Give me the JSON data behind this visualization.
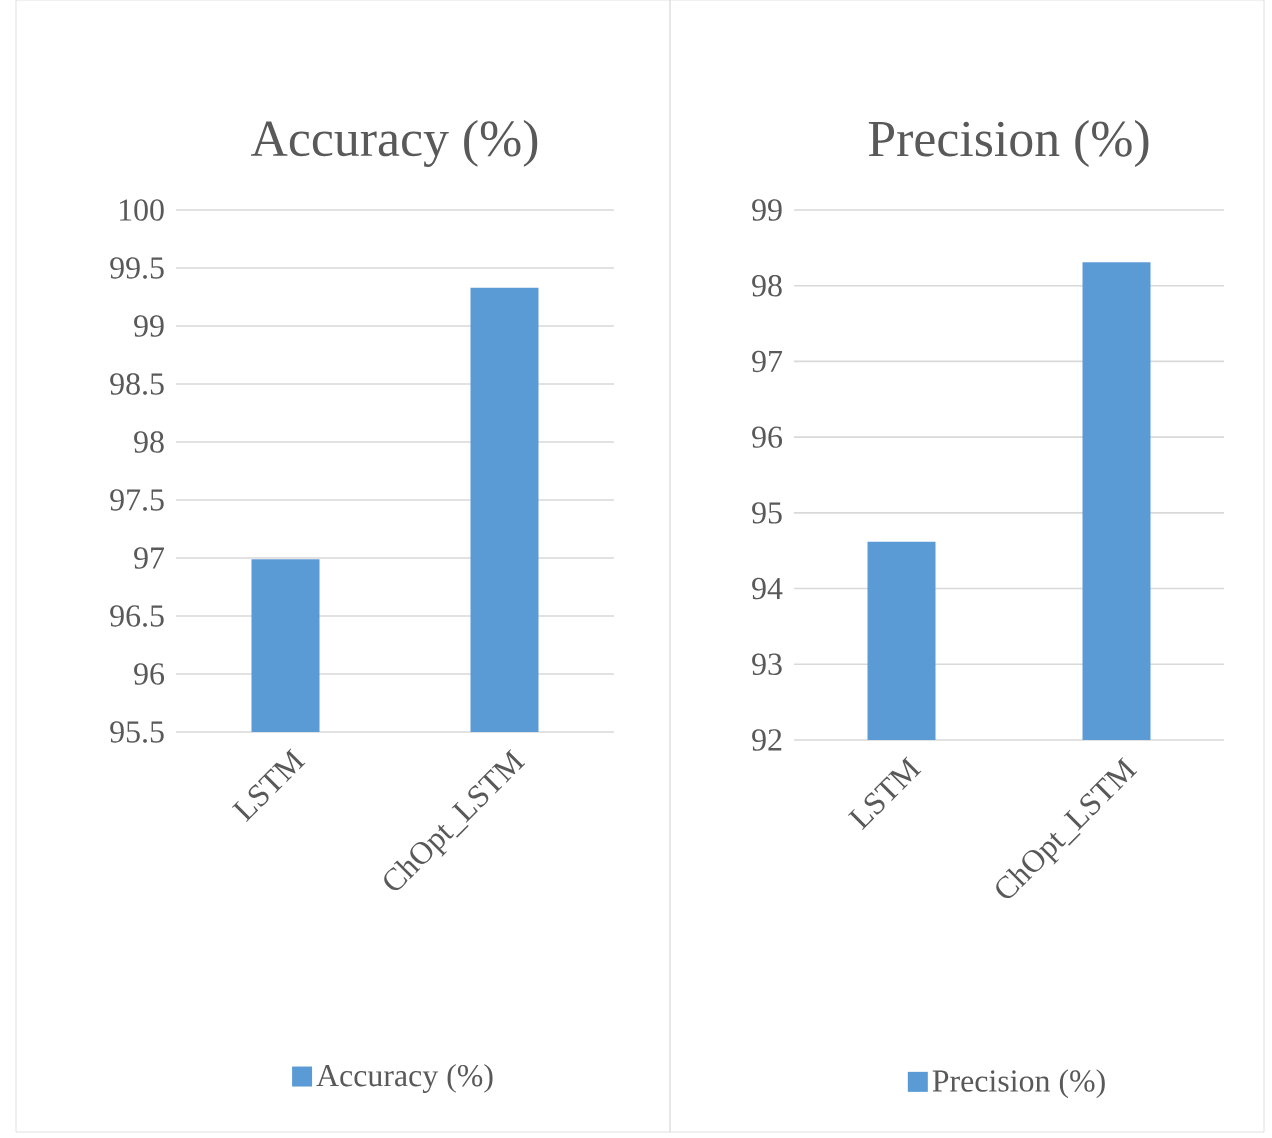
{
  "chart_data": [
    {
      "type": "bar",
      "title": "Accuracy (%)",
      "categories": [
        "LSTM",
        "ChOpt_LSTM"
      ],
      "series": [
        {
          "name": "Accuracy (%)",
          "color": "#5b9bd5",
          "values": [
            96.99,
            99.33
          ]
        }
      ],
      "ylim": [
        95.5,
        100
      ],
      "yticks": [
        95.5,
        96,
        96.5,
        97,
        97.5,
        98,
        98.5,
        99,
        99.5,
        100
      ],
      "grid": "y",
      "legend": "bottom"
    },
    {
      "type": "bar",
      "title": "Precision (%)",
      "categories": [
        "LSTM",
        "ChOpt_LSTM"
      ],
      "series": [
        {
          "name": "Precision (%)",
          "color": "#5b9bd5",
          "values": [
            94.62,
            98.31
          ]
        }
      ],
      "ylim": [
        92,
        99
      ],
      "yticks": [
        92,
        93,
        94,
        95,
        96,
        97,
        98,
        99
      ],
      "grid": "y",
      "legend": "bottom"
    }
  ]
}
